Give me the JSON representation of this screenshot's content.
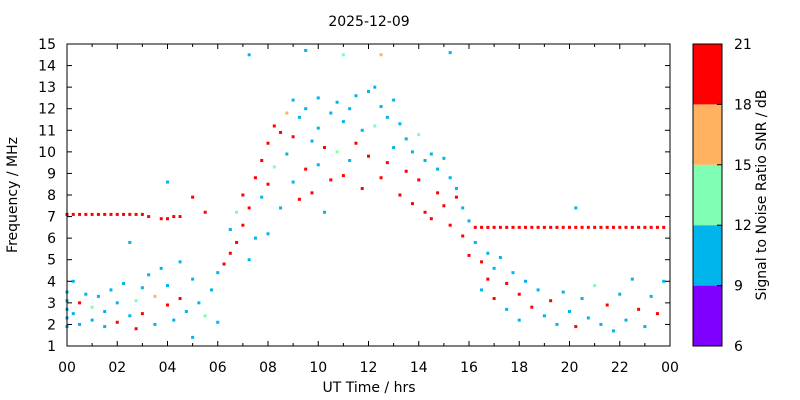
{
  "chart_data": {
    "type": "heatmap",
    "title": "2025-12-09",
    "xlabel": "UT Time / hrs",
    "ylabel": "Frequency / MHz",
    "xlim": [
      0,
      24
    ],
    "ylim": [
      1,
      15
    ],
    "x_ticks": [
      "00",
      "02",
      "04",
      "06",
      "08",
      "10",
      "12",
      "14",
      "16",
      "18",
      "20",
      "22",
      "00"
    ],
    "y_ticks": [
      "1",
      "2",
      "3",
      "4",
      "5",
      "6",
      "7",
      "8",
      "9",
      "10",
      "11",
      "12",
      "13",
      "14",
      "15"
    ],
    "colorbar": {
      "label": "Signal to Noise Ratio SNR / dB",
      "ticks": [
        "6",
        "9",
        "12",
        "15",
        "18",
        "21"
      ],
      "range": [
        6,
        21
      ],
      "bands": [
        {
          "from": 6,
          "to": 9,
          "color": "#8000ff"
        },
        {
          "from": 9,
          "to": 12,
          "color": "#00b4ec"
        },
        {
          "from": 12,
          "to": 15,
          "color": "#80ffb4"
        },
        {
          "from": 15,
          "to": 18,
          "color": "#ffb360"
        },
        {
          "from": 18,
          "to": 21,
          "color": "#ff0000"
        }
      ]
    },
    "series": [
      {
        "values": [
          [
            0.0,
            7.1,
            19
          ],
          [
            0.25,
            7.1,
            19
          ],
          [
            0.5,
            7.1,
            19
          ],
          [
            0.75,
            7.1,
            19
          ],
          [
            1.0,
            7.1,
            19
          ],
          [
            1.25,
            7.1,
            19
          ],
          [
            1.5,
            7.1,
            19
          ],
          [
            1.75,
            7.1,
            19
          ],
          [
            2.0,
            7.1,
            19
          ],
          [
            2.25,
            7.1,
            19
          ],
          [
            2.5,
            7.1,
            19
          ],
          [
            2.75,
            7.1,
            19
          ],
          [
            3.0,
            7.1,
            19
          ],
          [
            3.25,
            7.0,
            19
          ],
          [
            3.75,
            6.9,
            19
          ],
          [
            4.0,
            6.9,
            19
          ],
          [
            4.25,
            7.0,
            19
          ],
          [
            4.5,
            7.0,
            19
          ],
          [
            5.0,
            7.9,
            19
          ],
          [
            5.5,
            7.2,
            19
          ],
          [
            16.25,
            6.5,
            19
          ],
          [
            16.5,
            6.5,
            19
          ],
          [
            16.75,
            6.5,
            19
          ],
          [
            17.0,
            6.5,
            19
          ],
          [
            17.25,
            6.5,
            19
          ],
          [
            17.5,
            6.5,
            19
          ],
          [
            17.75,
            6.5,
            19
          ],
          [
            18.0,
            6.5,
            19
          ],
          [
            18.25,
            6.5,
            19
          ],
          [
            18.5,
            6.5,
            19
          ],
          [
            18.75,
            6.5,
            19
          ],
          [
            19.0,
            6.5,
            19
          ],
          [
            19.25,
            6.5,
            19
          ],
          [
            19.5,
            6.5,
            19
          ],
          [
            19.75,
            6.5,
            19
          ],
          [
            20.0,
            6.5,
            19
          ],
          [
            20.25,
            6.5,
            19
          ],
          [
            20.5,
            6.5,
            19
          ],
          [
            20.75,
            6.5,
            19
          ],
          [
            21.0,
            6.5,
            19
          ],
          [
            21.25,
            6.5,
            19
          ],
          [
            21.5,
            6.5,
            19
          ],
          [
            21.75,
            6.5,
            19
          ],
          [
            22.0,
            6.5,
            19
          ],
          [
            22.25,
            6.5,
            19
          ],
          [
            22.5,
            6.5,
            19
          ],
          [
            22.75,
            6.5,
            19
          ],
          [
            23.0,
            6.5,
            19
          ],
          [
            23.25,
            6.5,
            19
          ],
          [
            23.5,
            6.5,
            19
          ],
          [
            23.75,
            6.5,
            19
          ],
          [
            0.0,
            1.9,
            10
          ],
          [
            0.0,
            2.3,
            10
          ],
          [
            0.0,
            2.7,
            10
          ],
          [
            0.0,
            3.1,
            10
          ],
          [
            0.0,
            3.5,
            10
          ],
          [
            0.25,
            4.0,
            10
          ],
          [
            0.25,
            2.5,
            10
          ],
          [
            0.5,
            3.0,
            19
          ],
          [
            0.5,
            2.0,
            10
          ],
          [
            0.75,
            3.4,
            10
          ],
          [
            1.0,
            2.2,
            10
          ],
          [
            1.0,
            2.8,
            13
          ],
          [
            1.25,
            3.3,
            10
          ],
          [
            1.5,
            1.9,
            10
          ],
          [
            1.5,
            2.6,
            10
          ],
          [
            1.75,
            3.6,
            10
          ],
          [
            2.0,
            2.1,
            19
          ],
          [
            2.0,
            3.0,
            10
          ],
          [
            2.25,
            3.9,
            10
          ],
          [
            2.5,
            2.4,
            10
          ],
          [
            2.75,
            1.8,
            19
          ],
          [
            2.75,
            3.1,
            13
          ],
          [
            3.0,
            3.7,
            10
          ],
          [
            3.0,
            2.5,
            19
          ],
          [
            3.25,
            4.3,
            10
          ],
          [
            3.5,
            2.0,
            10
          ],
          [
            3.5,
            3.3,
            16
          ],
          [
            3.75,
            4.6,
            10
          ],
          [
            4.0,
            2.9,
            19
          ],
          [
            4.0,
            3.8,
            10
          ],
          [
            4.25,
            2.2,
            10
          ],
          [
            4.5,
            4.9,
            10
          ],
          [
            4.5,
            3.2,
            19
          ],
          [
            4.75,
            2.6,
            10
          ],
          [
            5.0,
            4.1,
            10
          ],
          [
            5.0,
            1.4,
            10
          ],
          [
            5.25,
            3.0,
            10
          ],
          [
            5.5,
            2.4,
            13
          ],
          [
            5.75,
            3.6,
            10
          ],
          [
            6.0,
            2.1,
            10
          ],
          [
            6.0,
            4.4,
            10
          ],
          [
            6.25,
            4.8,
            19
          ],
          [
            6.5,
            5.3,
            19
          ],
          [
            6.5,
            6.4,
            10
          ],
          [
            6.75,
            5.8,
            19
          ],
          [
            6.75,
            7.2,
            13
          ],
          [
            7.0,
            6.6,
            19
          ],
          [
            7.0,
            8.0,
            19
          ],
          [
            7.25,
            7.4,
            19
          ],
          [
            7.25,
            5.0,
            10
          ],
          [
            7.5,
            8.8,
            19
          ],
          [
            7.5,
            6.0,
            10
          ],
          [
            7.75,
            9.6,
            19
          ],
          [
            7.75,
            7.9,
            10
          ],
          [
            8.0,
            10.4,
            19
          ],
          [
            8.0,
            8.5,
            19
          ],
          [
            8.0,
            6.2,
            10
          ],
          [
            8.25,
            11.2,
            19
          ],
          [
            8.25,
            9.3,
            13
          ],
          [
            8.5,
            10.9,
            19
          ],
          [
            8.5,
            7.4,
            10
          ],
          [
            8.75,
            11.8,
            16
          ],
          [
            8.75,
            9.9,
            10
          ],
          [
            9.0,
            12.4,
            10
          ],
          [
            9.0,
            10.7,
            19
          ],
          [
            9.0,
            8.6,
            10
          ],
          [
            9.25,
            11.6,
            10
          ],
          [
            9.25,
            7.8,
            19
          ],
          [
            9.5,
            12.0,
            10
          ],
          [
            9.5,
            9.2,
            19
          ],
          [
            9.75,
            10.5,
            10
          ],
          [
            9.75,
            8.1,
            19
          ],
          [
            10.0,
            12.5,
            10
          ],
          [
            10.0,
            11.1,
            10
          ],
          [
            10.0,
            9.4,
            10
          ],
          [
            10.25,
            10.2,
            19
          ],
          [
            10.25,
            7.2,
            10
          ],
          [
            10.5,
            11.8,
            10
          ],
          [
            10.5,
            8.7,
            19
          ],
          [
            10.75,
            12.3,
            10
          ],
          [
            10.75,
            10.0,
            13
          ],
          [
            11.0,
            11.4,
            10
          ],
          [
            11.0,
            8.9,
            19
          ],
          [
            11.25,
            12.0,
            10
          ],
          [
            11.25,
            9.6,
            10
          ],
          [
            11.5,
            12.6,
            10
          ],
          [
            11.5,
            10.4,
            19
          ],
          [
            11.75,
            11.0,
            10
          ],
          [
            11.75,
            8.3,
            19
          ],
          [
            12.0,
            12.8,
            10
          ],
          [
            12.0,
            9.8,
            19
          ],
          [
            12.25,
            13.0,
            10
          ],
          [
            12.25,
            11.2,
            13
          ],
          [
            12.5,
            12.1,
            10
          ],
          [
            12.5,
            8.8,
            19
          ],
          [
            12.75,
            11.6,
            10
          ],
          [
            12.75,
            9.5,
            19
          ],
          [
            13.0,
            12.4,
            10
          ],
          [
            13.0,
            10.2,
            10
          ],
          [
            13.25,
            11.3,
            10
          ],
          [
            13.25,
            8.0,
            19
          ],
          [
            13.5,
            10.6,
            10
          ],
          [
            13.5,
            9.1,
            19
          ],
          [
            13.75,
            10.0,
            10
          ],
          [
            13.75,
            7.6,
            19
          ],
          [
            14.0,
            10.8,
            13
          ],
          [
            14.0,
            8.7,
            19
          ],
          [
            14.25,
            9.6,
            10
          ],
          [
            14.25,
            7.2,
            19
          ],
          [
            14.5,
            9.9,
            10
          ],
          [
            14.5,
            6.9,
            19
          ],
          [
            14.75,
            9.2,
            10
          ],
          [
            14.75,
            8.1,
            19
          ],
          [
            15.0,
            9.7,
            10
          ],
          [
            15.0,
            7.5,
            19
          ],
          [
            15.25,
            8.8,
            10
          ],
          [
            15.25,
            6.6,
            19
          ],
          [
            15.5,
            8.3,
            10
          ],
          [
            15.5,
            7.9,
            19
          ],
          [
            15.75,
            7.4,
            10
          ],
          [
            15.75,
            6.1,
            19
          ],
          [
            16.0,
            6.8,
            10
          ],
          [
            16.0,
            5.2,
            19
          ],
          [
            16.25,
            5.8,
            10
          ],
          [
            16.5,
            4.9,
            19
          ],
          [
            16.5,
            3.6,
            10
          ],
          [
            16.75,
            5.3,
            10
          ],
          [
            16.75,
            4.1,
            19
          ],
          [
            17.0,
            4.6,
            10
          ],
          [
            17.0,
            3.2,
            19
          ],
          [
            17.25,
            5.1,
            10
          ],
          [
            17.5,
            3.9,
            19
          ],
          [
            17.5,
            2.7,
            10
          ],
          [
            17.75,
            4.4,
            10
          ],
          [
            18.0,
            3.4,
            19
          ],
          [
            18.0,
            2.2,
            10
          ],
          [
            18.25,
            4.0,
            10
          ],
          [
            18.5,
            2.8,
            19
          ],
          [
            18.75,
            3.6,
            10
          ],
          [
            19.0,
            2.4,
            10
          ],
          [
            19.25,
            3.1,
            19
          ],
          [
            19.5,
            2.0,
            10
          ],
          [
            19.75,
            3.5,
            10
          ],
          [
            20.0,
            2.6,
            10
          ],
          [
            20.25,
            1.9,
            19
          ],
          [
            20.5,
            3.2,
            10
          ],
          [
            20.75,
            2.3,
            10
          ],
          [
            21.0,
            3.8,
            13
          ],
          [
            21.25,
            2.0,
            10
          ],
          [
            21.5,
            2.9,
            19
          ],
          [
            21.75,
            1.7,
            10
          ],
          [
            22.0,
            3.4,
            10
          ],
          [
            22.25,
            2.2,
            10
          ],
          [
            22.5,
            4.1,
            10
          ],
          [
            22.75,
            2.7,
            19
          ],
          [
            23.0,
            1.9,
            10
          ],
          [
            23.25,
            3.3,
            10
          ],
          [
            23.5,
            2.5,
            19
          ],
          [
            23.75,
            4.0,
            10
          ],
          [
            7.25,
            14.5,
            10
          ],
          [
            9.5,
            14.7,
            10
          ],
          [
            11.0,
            14.5,
            13
          ],
          [
            12.5,
            14.5,
            16
          ],
          [
            15.25,
            14.6,
            10
          ],
          [
            4.0,
            8.6,
            10
          ],
          [
            20.25,
            7.4,
            10
          ],
          [
            2.5,
            5.8,
            10
          ]
        ]
      }
    ]
  }
}
